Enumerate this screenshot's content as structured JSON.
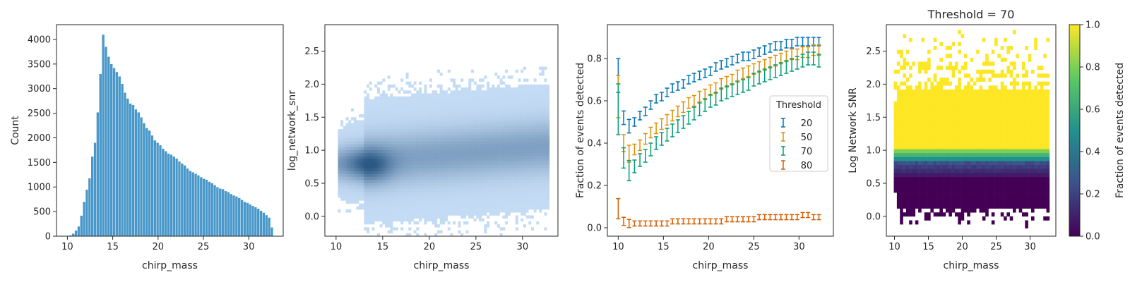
{
  "chart_data": [
    {
      "type": "bar",
      "xlabel": "chirp_mass",
      "ylabel": "Count",
      "xlim": [
        8.8,
        33.8
      ],
      "ylim": [
        0,
        4300
      ],
      "xticks": [
        "10",
        "15",
        "20",
        "25",
        "30"
      ],
      "yticks": [
        "0",
        "500",
        "1000",
        "1500",
        "2000",
        "2500",
        "3000",
        "3500",
        "4000"
      ],
      "color": "#4a98c9",
      "bin_start": 9.9,
      "bin_width": 0.3,
      "values": [
        8,
        20,
        55,
        120,
        200,
        420,
        700,
        950,
        1180,
        1620,
        1900,
        2520,
        3300,
        4100,
        3850,
        3650,
        3500,
        3420,
        3340,
        3250,
        3100,
        2920,
        2800,
        2700,
        2670,
        2580,
        2520,
        2420,
        2300,
        2200,
        2150,
        2050,
        1950,
        1900,
        1850,
        1780,
        1730,
        1680,
        1660,
        1620,
        1580,
        1520,
        1480,
        1440,
        1380,
        1330,
        1300,
        1270,
        1240,
        1200,
        1170,
        1150,
        1110,
        1080,
        1040,
        1000,
        970,
        960,
        920,
        900,
        860,
        830,
        810,
        780,
        740,
        700,
        680,
        650,
        620,
        590,
        560,
        520,
        480,
        430,
        380,
        180
      ]
    },
    {
      "type": "heatmap",
      "xlabel": "chirp_mass",
      "ylabel": "log_network_snr",
      "xlim": [
        8.8,
        33.8
      ],
      "ylim": [
        -0.3,
        2.9
      ],
      "xticks": [
        "10",
        "15",
        "20",
        "25",
        "30"
      ],
      "yticks": [
        "0.0",
        "0.5",
        "1.0",
        "1.5",
        "2.0",
        "2.5"
      ],
      "color_light": "#c4dbf4",
      "color_dark": "#1a4a78",
      "density_peak": {
        "x": 13.5,
        "y": 0.75
      }
    },
    {
      "type": "scatter",
      "xlabel": "chirp_mass",
      "ylabel": "Fraction of events detected",
      "xlim": [
        8.8,
        33.8
      ],
      "ylim": [
        -0.04,
        0.96
      ],
      "xticks": [
        "10",
        "15",
        "20",
        "25",
        "30"
      ],
      "yticks": [
        "0.0",
        "0.2",
        "0.4",
        "0.6",
        "0.8"
      ],
      "legend": {
        "title": "Threshold",
        "position": "center-right"
      },
      "x": [
        10.0,
        10.6,
        11.2,
        11.8,
        12.4,
        13.0,
        13.6,
        14.2,
        14.8,
        15.4,
        16.0,
        16.6,
        17.2,
        17.8,
        18.4,
        19.0,
        19.6,
        20.2,
        20.8,
        21.4,
        22.0,
        22.6,
        23.2,
        23.8,
        24.4,
        25.0,
        25.6,
        26.2,
        26.8,
        27.4,
        28.0,
        28.6,
        29.2,
        29.8,
        30.4,
        31.0,
        31.6,
        32.2
      ],
      "series": [
        {
          "name": "20",
          "color": "#0173b2",
          "err": 0.02,
          "values": [
            0.72,
            0.52,
            0.48,
            0.5,
            0.53,
            0.55,
            0.58,
            0.61,
            0.62,
            0.64,
            0.66,
            0.67,
            0.68,
            0.7,
            0.71,
            0.72,
            0.73,
            0.74,
            0.76,
            0.77,
            0.78,
            0.79,
            0.8,
            0.81,
            0.81,
            0.82,
            0.83,
            0.84,
            0.85,
            0.86,
            0.86,
            0.87,
            0.87,
            0.88,
            0.88,
            0.88,
            0.88,
            0.88
          ]
        },
        {
          "name": "50",
          "color": "#de8f05",
          "err": 0.025,
          "values": [
            0.62,
            0.4,
            0.35,
            0.37,
            0.39,
            0.42,
            0.45,
            0.47,
            0.49,
            0.51,
            0.53,
            0.55,
            0.57,
            0.59,
            0.6,
            0.62,
            0.63,
            0.65,
            0.66,
            0.68,
            0.69,
            0.7,
            0.72,
            0.73,
            0.74,
            0.75,
            0.76,
            0.77,
            0.78,
            0.79,
            0.8,
            0.81,
            0.82,
            0.82,
            0.83,
            0.83,
            0.84,
            0.84
          ]
        },
        {
          "name": "70",
          "color": "#029e73",
          "err": 0.03,
          "values": [
            0.56,
            0.33,
            0.27,
            0.29,
            0.32,
            0.34,
            0.37,
            0.4,
            0.42,
            0.44,
            0.46,
            0.48,
            0.5,
            0.52,
            0.54,
            0.56,
            0.58,
            0.6,
            0.61,
            0.63,
            0.64,
            0.65,
            0.66,
            0.67,
            0.68,
            0.7,
            0.71,
            0.72,
            0.73,
            0.74,
            0.75,
            0.76,
            0.77,
            0.78,
            0.79,
            0.8,
            0.8,
            0.79
          ]
        },
        {
          "name": "80",
          "color": "#d55e00",
          "err": 0.012,
          "values": [
            0.09,
            0.03,
            0.02,
            0.02,
            0.02,
            0.02,
            0.02,
            0.02,
            0.02,
            0.02,
            0.03,
            0.03,
            0.03,
            0.03,
            0.03,
            0.03,
            0.03,
            0.03,
            0.03,
            0.03,
            0.04,
            0.04,
            0.04,
            0.04,
            0.04,
            0.04,
            0.05,
            0.05,
            0.05,
            0.05,
            0.05,
            0.05,
            0.05,
            0.05,
            0.06,
            0.06,
            0.05,
            0.05
          ]
        }
      ]
    },
    {
      "type": "heatmap",
      "title": "Threshold = 70",
      "xlabel": "chirp_mass",
      "ylabel": "Log Network SNR",
      "xlim": [
        8.8,
        33.8
      ],
      "ylim": [
        -0.3,
        2.9
      ],
      "xticks": [
        "10",
        "15",
        "20",
        "25",
        "30"
      ],
      "yticks": [
        "0.0",
        "0.5",
        "1.0",
        "1.5",
        "2.0",
        "2.5"
      ],
      "colorbar": {
        "label": "Fraction of events detected",
        "ticks": [
          "0.0",
          "0.2",
          "0.4",
          "0.6",
          "0.8",
          "1.0"
        ],
        "colors": [
          "#440154",
          "#3b528b",
          "#21918c",
          "#5ec962",
          "#fde725"
        ]
      }
    }
  ]
}
